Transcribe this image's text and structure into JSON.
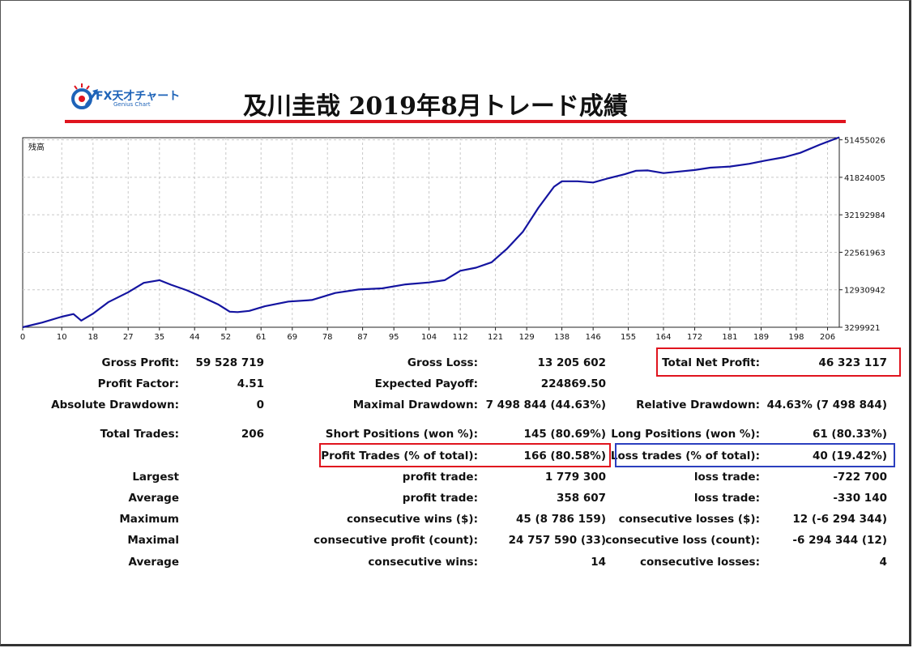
{
  "header": {
    "logo_brand": "FX天才チャート",
    "logo_sub": "Genius Chart",
    "title": "及川圭哉 2019年8月トレード成績"
  },
  "colors": {
    "accent_red": "#e0141e",
    "highlight_blue": "#2b3fbf",
    "line": "#1414a0",
    "logo_blue": "#1e63b8"
  },
  "chart_data": {
    "type": "line",
    "title": "",
    "ylabel": "残高",
    "xlabel": "",
    "x_ticks": [
      0,
      10,
      18,
      27,
      35,
      44,
      52,
      61,
      69,
      78,
      87,
      95,
      104,
      112,
      121,
      129,
      138,
      146,
      155,
      164,
      172,
      181,
      189,
      198,
      206
    ],
    "y_ticks": [
      3299921,
      12930942,
      22561963,
      32192984,
      41824005,
      51455026
    ],
    "x_range": [
      0,
      209
    ],
    "y_range": [
      3299921,
      52000000
    ],
    "grid": true,
    "series": [
      {
        "x": [
          0,
          5,
          10,
          13,
          15,
          18,
          22,
          27,
          31,
          35,
          38,
          42,
          45,
          50,
          53,
          55,
          58,
          62,
          68,
          74,
          80,
          86,
          92,
          98,
          104,
          108,
          112,
          116,
          120,
          124,
          128,
          132,
          136,
          138,
          142,
          146,
          150,
          154,
          157,
          160,
          164,
          168,
          172,
          176,
          181,
          186,
          190,
          195,
          199,
          204,
          209
        ],
        "y": [
          3300000,
          4500000,
          6000000,
          6700000,
          5000000,
          6800000,
          9800000,
          12300000,
          14700000,
          15400000,
          14200000,
          12800000,
          11500000,
          9200000,
          7300000,
          7200000,
          7500000,
          8700000,
          9900000,
          10300000,
          12100000,
          13000000,
          13300000,
          14300000,
          14800000,
          15400000,
          17800000,
          18600000,
          20000000,
          23500000,
          27800000,
          34000000,
          39400000,
          40800000,
          40800000,
          40500000,
          41600000,
          42600000,
          43500000,
          43600000,
          42900000,
          43300000,
          43700000,
          44300000,
          44600000,
          45300000,
          46100000,
          47000000,
          48100000,
          50200000,
          52100000
        ]
      }
    ]
  },
  "stats": {
    "gross_profit": {
      "label": "Gross Profit:",
      "value": "59 528 719"
    },
    "profit_factor": {
      "label": "Profit Factor:",
      "value": "4.51"
    },
    "absolute_drawdown": {
      "label": "Absolute Drawdown:",
      "value": "0"
    },
    "total_trades": {
      "label": "Total Trades:",
      "value": "206"
    },
    "largest": {
      "label": "Largest"
    },
    "average1": {
      "label": "Average"
    },
    "maximum": {
      "label": "Maximum"
    },
    "maximal": {
      "label": "Maximal"
    },
    "average2": {
      "label": "Average"
    },
    "gross_loss": {
      "label": "Gross Loss:",
      "value": "13 205 602"
    },
    "expected_payoff": {
      "label": "Expected Payoff:",
      "value": "224869.50"
    },
    "maximal_drawdown": {
      "label": "Maximal Drawdown:",
      "value": "7 498 844 (44.63%)"
    },
    "short_positions": {
      "label": "Short Positions (won %):",
      "value": "145 (80.69%)"
    },
    "profit_trades": {
      "label": "Profit Trades (% of total):",
      "value": "166 (80.58%)"
    },
    "largest_profit": {
      "label": "profit trade:",
      "value": "1 779 300"
    },
    "average_profit": {
      "label": "profit trade:",
      "value": "358 607"
    },
    "max_consec_wins": {
      "label": "consecutive wins ($):",
      "value": "45 (8 786 159)"
    },
    "maximal_consec_profit": {
      "label": "consecutive profit (count):",
      "value": "24 757 590 (33)"
    },
    "average_consec_wins": {
      "label": "consecutive wins:",
      "value": "14"
    },
    "total_net_profit": {
      "label": "Total Net Profit:",
      "value": "46 323 117"
    },
    "relative_drawdown": {
      "label": "Relative Drawdown:",
      "value": "44.63% (7 498 844)"
    },
    "long_positions": {
      "label": "Long Positions (won %):",
      "value": "61 (80.33%)"
    },
    "loss_trades": {
      "label": "Loss trades (% of total):",
      "value": "40 (19.42%)"
    },
    "largest_loss": {
      "label": "loss trade:",
      "value": "-722 700"
    },
    "average_loss": {
      "label": "loss trade:",
      "value": "-330 140"
    },
    "max_consec_losses": {
      "label": "consecutive losses ($):",
      "value": "12 (-6 294 344)"
    },
    "maximal_consec_loss": {
      "label": "consecutive loss (count):",
      "value": "-6 294 344 (12)"
    },
    "average_consec_losses": {
      "label": "consecutive losses:",
      "value": "4"
    }
  }
}
